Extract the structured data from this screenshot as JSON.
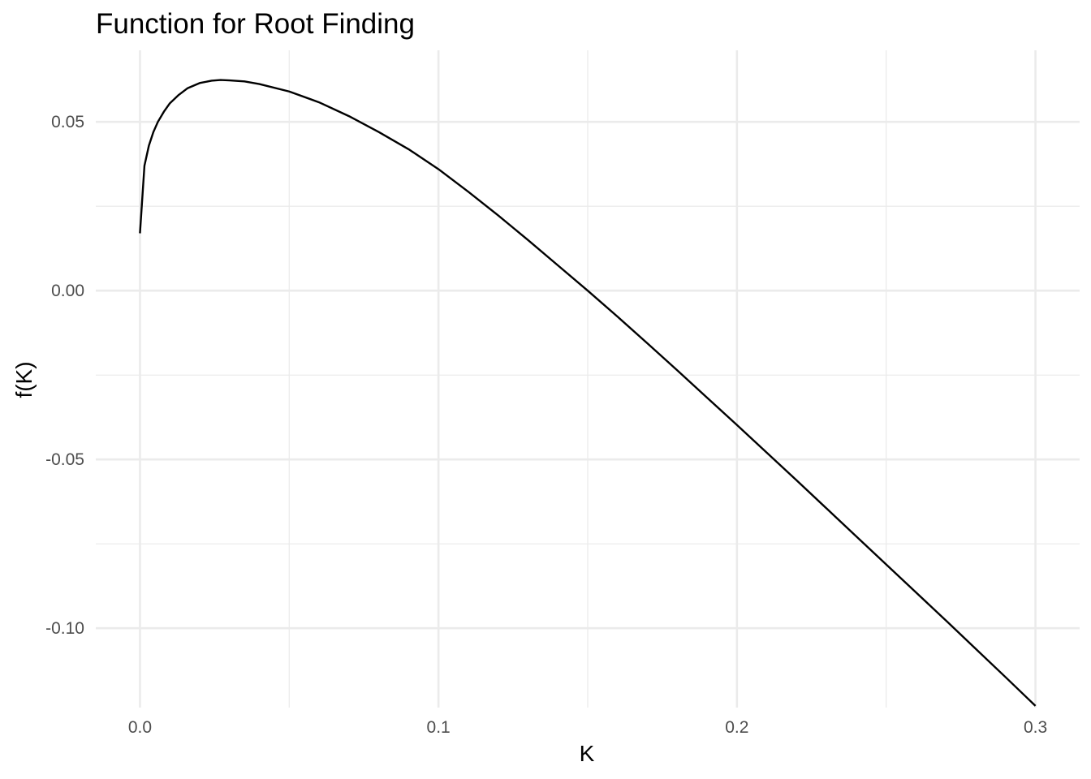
{
  "chart_data": {
    "type": "line",
    "title": "Function for Root Finding",
    "xlabel": "K",
    "ylabel": "f(K)",
    "xlim": [
      -0.0148,
      0.3148
    ],
    "ylim": [
      -0.1235,
      0.0712
    ],
    "x_major_ticks": [
      0.0,
      0.1,
      0.2,
      0.3
    ],
    "x_tick_labels": [
      "0.0",
      "0.1",
      "0.2",
      "0.3"
    ],
    "x_minor_ticks": [
      0.05,
      0.15,
      0.25
    ],
    "y_major_ticks": [
      0.05,
      0.0,
      -0.05,
      -0.1
    ],
    "y_tick_labels": [
      "0.05",
      "0.00",
      "-0.05",
      "-0.10"
    ],
    "y_minor_ticks": [
      0.025,
      -0.025,
      -0.075
    ],
    "grid": true,
    "legend": "none",
    "line_color": "#000000",
    "grid_color": "#ebebeb",
    "series": [
      {
        "x": [
          0.0,
          0.0015,
          0.003,
          0.0045,
          0.006,
          0.008,
          0.01,
          0.013,
          0.016,
          0.02,
          0.024,
          0.027,
          0.03,
          0.035,
          0.04,
          0.05,
          0.06,
          0.07,
          0.08,
          0.09,
          0.1,
          0.11,
          0.12,
          0.13,
          0.14,
          0.15,
          0.16,
          0.17,
          0.18,
          0.19,
          0.2,
          0.21,
          0.22,
          0.23,
          0.24,
          0.25,
          0.26,
          0.27,
          0.28,
          0.29,
          0.3
        ],
        "y": [
          0.017,
          0.037,
          0.043,
          0.047,
          0.05,
          0.053,
          0.0555,
          0.058,
          0.06,
          0.0615,
          0.0622,
          0.0624,
          0.0623,
          0.062,
          0.0612,
          0.059,
          0.0558,
          0.0517,
          0.047,
          0.0419,
          0.036,
          0.0293,
          0.0223,
          0.015,
          0.0075,
          0.0,
          -0.0077,
          -0.0156,
          -0.0236,
          -0.0317,
          -0.0398,
          -0.048,
          -0.0562,
          -0.0645,
          -0.0728,
          -0.0811,
          -0.0894,
          -0.0977,
          -0.1061,
          -0.1145,
          -0.123
        ]
      }
    ]
  }
}
